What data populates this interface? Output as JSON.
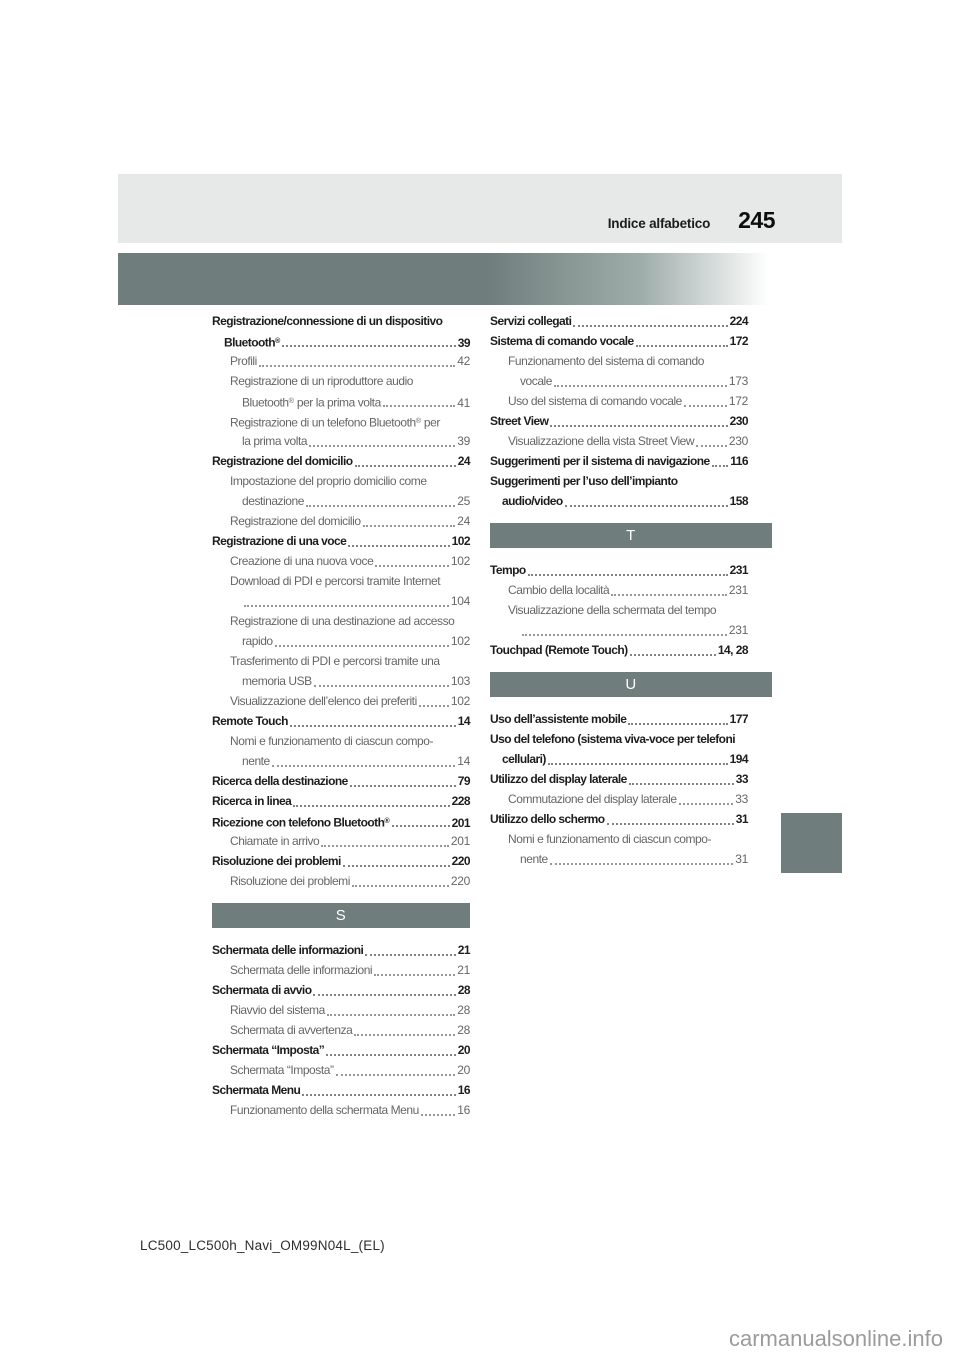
{
  "header": {
    "title": "Indice alfabetico",
    "page_number": "245"
  },
  "footer": {
    "doc_code": "LC500_LC500h_Navi_OM99N04L_(EL)"
  },
  "watermark": {
    "text": "carmanualsonline.info"
  },
  "colors": {
    "accent_bar": "#6f7e7c",
    "header_bg": "#e6e9e8",
    "text_main": "#1d1d1d",
    "text_sub": "#666665",
    "watermark": "#9b9b9b"
  },
  "index": {
    "left_column": [
      {
        "k": "e",
        "s": "main",
        "t": "Registrazione/connessione di un dispositivo"
      },
      {
        "k": "e",
        "s": "main2",
        "t": "Bluetooth®",
        "p": "39"
      },
      {
        "k": "e",
        "s": "sub",
        "t": "Profili",
        "p": "42"
      },
      {
        "k": "e",
        "s": "sub",
        "t": "Registrazione di un riproduttore audio"
      },
      {
        "k": "e",
        "s": "sub2",
        "t": "Bluetooth® per la prima volta",
        "p": "41"
      },
      {
        "k": "e",
        "s": "sub",
        "t": "Registrazione di un telefono Bluetooth® per"
      },
      {
        "k": "e",
        "s": "sub2",
        "t": "la prima volta",
        "p": "39"
      },
      {
        "k": "e",
        "s": "main",
        "t": "Registrazione del domicilio",
        "p": "24"
      },
      {
        "k": "e",
        "s": "sub",
        "t": "Impostazione del proprio domicilio come"
      },
      {
        "k": "e",
        "s": "sub2",
        "t": "destinazione",
        "p": "25"
      },
      {
        "k": "e",
        "s": "sub",
        "t": "Registrazione del domicilio",
        "p": "24"
      },
      {
        "k": "e",
        "s": "main",
        "t": "Registrazione di una voce",
        "p": "102"
      },
      {
        "k": "e",
        "s": "sub",
        "t": "Creazione di una nuova voce",
        "p": "102"
      },
      {
        "k": "e",
        "s": "sub",
        "t": "Download di PDI e percorsi tramite Internet"
      },
      {
        "k": "e",
        "s": "sub2",
        "t": "",
        "p": "104"
      },
      {
        "k": "e",
        "s": "sub",
        "t": "Registrazione di una destinazione ad accesso"
      },
      {
        "k": "e",
        "s": "sub2",
        "t": "rapido",
        "p": "102"
      },
      {
        "k": "e",
        "s": "sub",
        "t": "Trasferimento di PDI e percorsi tramite una"
      },
      {
        "k": "e",
        "s": "sub2",
        "t": "memoria USB",
        "p": "103"
      },
      {
        "k": "e",
        "s": "sub",
        "t": "Visualizzazione dell’elenco dei preferiti",
        "p": "102"
      },
      {
        "k": "e",
        "s": "main",
        "t": "Remote Touch",
        "p": "14"
      },
      {
        "k": "e",
        "s": "sub",
        "t": "Nomi e funzionamento di ciascun compo-"
      },
      {
        "k": "e",
        "s": "sub2",
        "t": "nente",
        "p": "14"
      },
      {
        "k": "e",
        "s": "main",
        "t": "Ricerca della destinazione",
        "p": "79"
      },
      {
        "k": "e",
        "s": "main",
        "t": "Ricerca in linea",
        "p": "228"
      },
      {
        "k": "e",
        "s": "main",
        "t": "Ricezione con telefono Bluetooth®",
        "p": "201"
      },
      {
        "k": "e",
        "s": "sub",
        "t": "Chiamate in arrivo",
        "p": "201"
      },
      {
        "k": "e",
        "s": "main",
        "t": "Risoluzione dei problemi",
        "p": "220"
      },
      {
        "k": "e",
        "s": "sub",
        "t": "Risoluzione dei problemi",
        "p": "220"
      },
      {
        "k": "sec",
        "t": "S"
      },
      {
        "k": "e",
        "s": "main",
        "t": "Schermata delle informazioni",
        "p": "21"
      },
      {
        "k": "e",
        "s": "sub",
        "t": "Schermata delle informazioni",
        "p": "21"
      },
      {
        "k": "e",
        "s": "main",
        "t": "Schermata di avvio",
        "p": "28"
      },
      {
        "k": "e",
        "s": "sub",
        "t": "Riavvio del sistema",
        "p": "28"
      },
      {
        "k": "e",
        "s": "sub",
        "t": "Schermata di avvertenza",
        "p": "28"
      },
      {
        "k": "e",
        "s": "main",
        "t": "Schermata “Imposta”",
        "p": "20"
      },
      {
        "k": "e",
        "s": "sub",
        "t": "Schermata “Imposta”",
        "p": "20"
      },
      {
        "k": "e",
        "s": "main",
        "t": "Schermata Menu",
        "p": "16"
      },
      {
        "k": "e",
        "s": "sub",
        "t": "Funzionamento della schermata Menu",
        "p": "16"
      }
    ],
    "right_column": [
      {
        "k": "e",
        "s": "main",
        "t": "Servizi collegati",
        "p": "224"
      },
      {
        "k": "e",
        "s": "main",
        "t": "Sistema di comando vocale",
        "p": "172"
      },
      {
        "k": "e",
        "s": "sub",
        "t": "Funzionamento del sistema di comando"
      },
      {
        "k": "e",
        "s": "sub2",
        "t": "vocale",
        "p": "173"
      },
      {
        "k": "e",
        "s": "sub",
        "t": "Uso del sistema di comando vocale",
        "p": "172"
      },
      {
        "k": "e",
        "s": "main",
        "t": "Street View",
        "p": "230"
      },
      {
        "k": "e",
        "s": "sub",
        "t": "Visualizzazione della vista Street View",
        "p": "230"
      },
      {
        "k": "e",
        "s": "main",
        "t": "Suggerimenti per il sistema di navigazione",
        "p": "116"
      },
      {
        "k": "e",
        "s": "main",
        "t": "Suggerimenti per l’uso dell’impianto"
      },
      {
        "k": "e",
        "s": "main2",
        "t": "audio/video",
        "p": "158"
      },
      {
        "k": "sec",
        "t": "T"
      },
      {
        "k": "e",
        "s": "main",
        "t": "Tempo",
        "p": "231"
      },
      {
        "k": "e",
        "s": "sub",
        "t": "Cambio della località",
        "p": "231"
      },
      {
        "k": "e",
        "s": "sub",
        "t": "Visualizzazione della schermata del tempo"
      },
      {
        "k": "e",
        "s": "sub2",
        "t": "",
        "p": "231"
      },
      {
        "k": "e",
        "s": "main",
        "t": "Touchpad (Remote Touch)",
        "p": "14, 28"
      },
      {
        "k": "sec",
        "t": "U"
      },
      {
        "k": "e",
        "s": "main",
        "t": "Uso dell’assistente mobile",
        "p": "177"
      },
      {
        "k": "e",
        "s": "main",
        "t": "Uso del telefono (sistema viva-voce per telefoni"
      },
      {
        "k": "e",
        "s": "main2",
        "t": "cellulari)",
        "p": "194"
      },
      {
        "k": "e",
        "s": "main",
        "t": "Utilizzo del display laterale",
        "p": "33"
      },
      {
        "k": "e",
        "s": "sub",
        "t": "Commutazione del display laterale",
        "p": "33"
      },
      {
        "k": "e",
        "s": "main",
        "t": "Utilizzo dello schermo",
        "p": "31"
      },
      {
        "k": "e",
        "s": "sub",
        "t": "Nomi e funzionamento di ciascun compo-"
      },
      {
        "k": "e",
        "s": "sub2",
        "t": "nente",
        "p": "31"
      }
    ]
  }
}
